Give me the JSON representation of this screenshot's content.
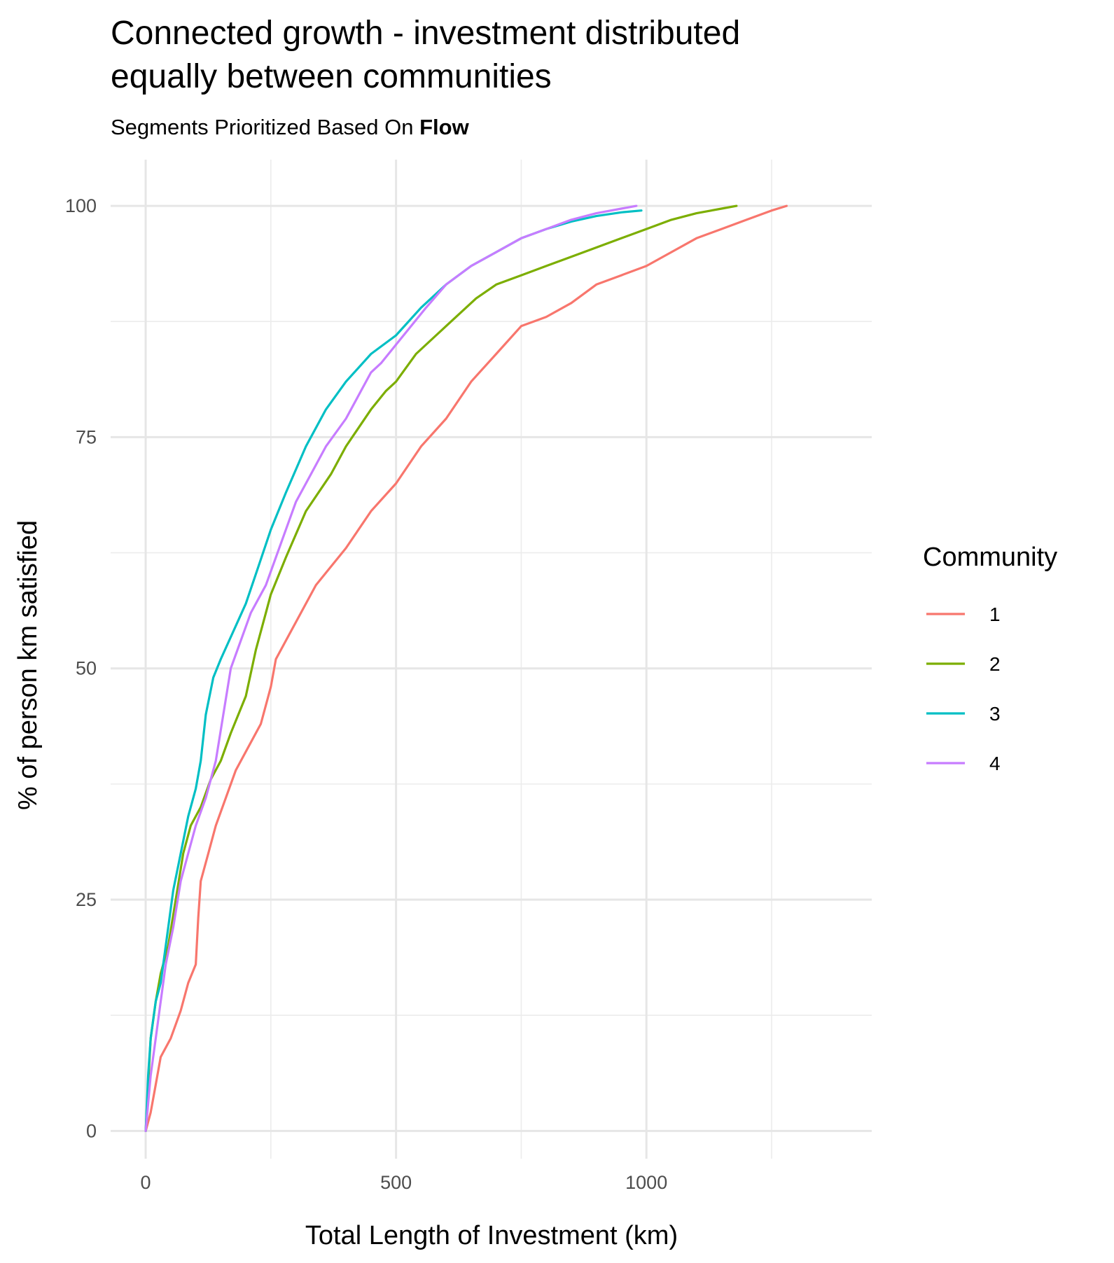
{
  "chart_data": {
    "type": "line",
    "title_line1": "Connected growth - investment distributed",
    "title_line2": "equally between communities",
    "subtitle_prefix": "Segments Prioritized Based On ",
    "subtitle_bold": "Flow",
    "xlabel": "Total Length of Investment (km)",
    "ylabel": "% of person km satisfied",
    "xlim": [
      -70,
      1450
    ],
    "ylim": [
      -3,
      105
    ],
    "x_ticks": [
      0,
      500,
      1000
    ],
    "y_ticks": [
      0,
      25,
      50,
      75,
      100
    ],
    "x_tick_labels": [
      "0",
      "500",
      "1000"
    ],
    "y_tick_labels": [
      "0",
      "25",
      "50",
      "75",
      "100"
    ],
    "grid": true,
    "legend": {
      "title": "Community",
      "placement": "right"
    },
    "series": [
      {
        "name": "1",
        "color": "#F8766D",
        "points": [
          [
            0,
            0
          ],
          [
            10,
            2
          ],
          [
            20,
            5
          ],
          [
            30,
            8
          ],
          [
            50,
            10
          ],
          [
            70,
            13
          ],
          [
            85,
            16
          ],
          [
            100,
            18
          ],
          [
            105,
            23
          ],
          [
            110,
            27
          ],
          [
            125,
            30
          ],
          [
            140,
            33
          ],
          [
            160,
            36
          ],
          [
            180,
            39
          ],
          [
            200,
            41
          ],
          [
            230,
            44
          ],
          [
            250,
            48
          ],
          [
            260,
            51
          ],
          [
            300,
            55
          ],
          [
            340,
            59
          ],
          [
            400,
            63
          ],
          [
            450,
            67
          ],
          [
            500,
            70
          ],
          [
            550,
            74
          ],
          [
            600,
            77
          ],
          [
            650,
            81
          ],
          [
            700,
            84
          ],
          [
            750,
            87
          ],
          [
            800,
            88
          ],
          [
            850,
            89.5
          ],
          [
            900,
            91.5
          ],
          [
            950,
            92.5
          ],
          [
            1000,
            93.5
          ],
          [
            1050,
            95
          ],
          [
            1100,
            96.5
          ],
          [
            1150,
            97.5
          ],
          [
            1200,
            98.5
          ],
          [
            1250,
            99.5
          ],
          [
            1280,
            100
          ]
        ]
      },
      {
        "name": "2",
        "color": "#7CAE00",
        "points": [
          [
            0,
            0
          ],
          [
            5,
            5
          ],
          [
            10,
            10
          ],
          [
            20,
            14
          ],
          [
            30,
            17
          ],
          [
            45,
            20
          ],
          [
            60,
            25
          ],
          [
            75,
            30
          ],
          [
            90,
            33
          ],
          [
            110,
            35
          ],
          [
            130,
            38
          ],
          [
            150,
            40
          ],
          [
            170,
            43
          ],
          [
            200,
            47
          ],
          [
            220,
            52
          ],
          [
            240,
            56
          ],
          [
            250,
            58
          ],
          [
            280,
            62
          ],
          [
            320,
            67
          ],
          [
            370,
            71
          ],
          [
            400,
            74
          ],
          [
            450,
            78
          ],
          [
            480,
            80
          ],
          [
            500,
            81
          ],
          [
            540,
            84
          ],
          [
            580,
            86
          ],
          [
            620,
            88
          ],
          [
            660,
            90
          ],
          [
            700,
            91.5
          ],
          [
            750,
            92.5
          ],
          [
            800,
            93.5
          ],
          [
            850,
            94.5
          ],
          [
            900,
            95.5
          ],
          [
            950,
            96.5
          ],
          [
            1000,
            97.5
          ],
          [
            1050,
            98.5
          ],
          [
            1100,
            99.2
          ],
          [
            1150,
            99.7
          ],
          [
            1180,
            100
          ]
        ]
      },
      {
        "name": "3",
        "color": "#00BFC4",
        "points": [
          [
            0,
            0
          ],
          [
            5,
            6
          ],
          [
            10,
            10
          ],
          [
            20,
            14
          ],
          [
            30,
            16
          ],
          [
            40,
            20
          ],
          [
            55,
            26
          ],
          [
            70,
            30
          ],
          [
            85,
            34
          ],
          [
            100,
            37
          ],
          [
            110,
            40
          ],
          [
            120,
            45
          ],
          [
            135,
            49
          ],
          [
            150,
            51
          ],
          [
            175,
            54
          ],
          [
            200,
            57
          ],
          [
            225,
            61
          ],
          [
            250,
            65
          ],
          [
            280,
            69
          ],
          [
            320,
            74
          ],
          [
            360,
            78
          ],
          [
            400,
            81
          ],
          [
            450,
            84
          ],
          [
            500,
            86
          ],
          [
            550,
            89
          ],
          [
            600,
            91.5
          ],
          [
            650,
            93.5
          ],
          [
            700,
            95
          ],
          [
            750,
            96.5
          ],
          [
            800,
            97.5
          ],
          [
            850,
            98.3
          ],
          [
            900,
            98.9
          ],
          [
            950,
            99.3
          ],
          [
            990,
            99.5
          ]
        ]
      },
      {
        "name": "4",
        "color": "#C77CFF",
        "points": [
          [
            0,
            0
          ],
          [
            5,
            3
          ],
          [
            10,
            6
          ],
          [
            20,
            10
          ],
          [
            30,
            14
          ],
          [
            40,
            18
          ],
          [
            55,
            22
          ],
          [
            70,
            27
          ],
          [
            85,
            30
          ],
          [
            100,
            33
          ],
          [
            120,
            36
          ],
          [
            140,
            40
          ],
          [
            155,
            45
          ],
          [
            170,
            50
          ],
          [
            190,
            53
          ],
          [
            210,
            56
          ],
          [
            240,
            59
          ],
          [
            260,
            62
          ],
          [
            280,
            65
          ],
          [
            300,
            68
          ],
          [
            330,
            71
          ],
          [
            360,
            74
          ],
          [
            400,
            77
          ],
          [
            430,
            80
          ],
          [
            450,
            82
          ],
          [
            470,
            83
          ],
          [
            500,
            85
          ],
          [
            530,
            87
          ],
          [
            560,
            89
          ],
          [
            600,
            91.5
          ],
          [
            650,
            93.5
          ],
          [
            700,
            95
          ],
          [
            750,
            96.5
          ],
          [
            800,
            97.5
          ],
          [
            850,
            98.5
          ],
          [
            900,
            99.2
          ],
          [
            950,
            99.7
          ],
          [
            980,
            100
          ]
        ]
      }
    ]
  }
}
